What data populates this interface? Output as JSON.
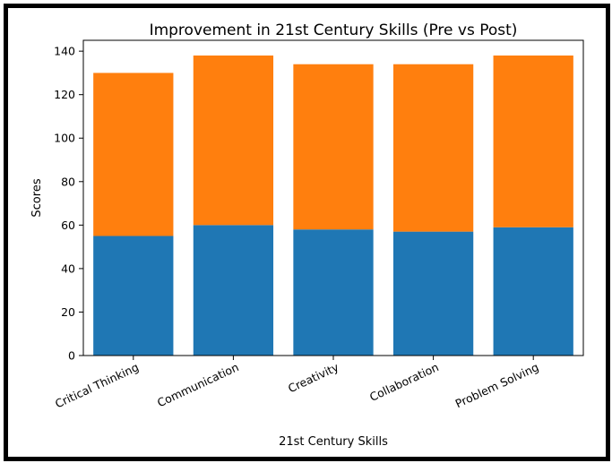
{
  "chart_data": {
    "type": "bar",
    "stacked": true,
    "title": "Improvement in 21st Century Skills (Pre vs Post)",
    "xlabel": "21st Century Skills",
    "ylabel": "Scores",
    "categories": [
      "Critical Thinking",
      "Communication",
      "Creativity",
      "Collaboration",
      "Problem Solving"
    ],
    "series": [
      {
        "values": [
          55,
          60,
          58,
          57,
          59
        ],
        "color": "#1f77b4"
      },
      {
        "values": [
          75,
          78,
          76,
          77,
          79
        ],
        "color": "#ff7f0e"
      }
    ],
    "ylim": [
      0,
      145
    ],
    "yticks": [
      0,
      20,
      40,
      60,
      80,
      100,
      120,
      140
    ],
    "grid": false,
    "legend": false
  }
}
